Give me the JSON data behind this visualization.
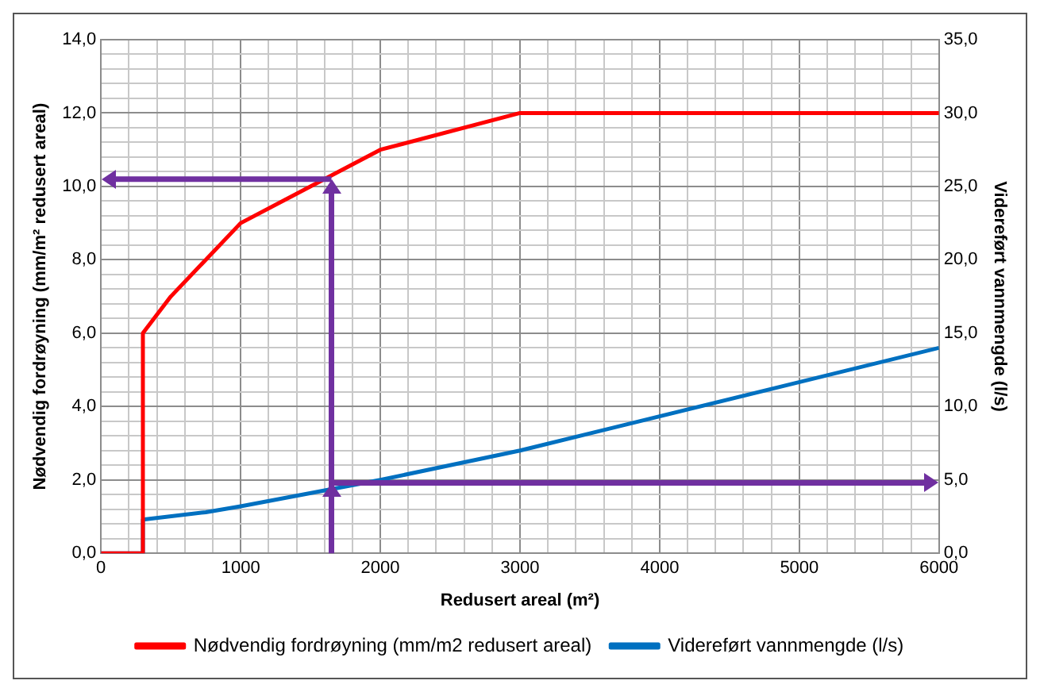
{
  "chart_data": {
    "type": "line",
    "xlabel": "Redusert areal (m²)",
    "ylabel": "Nødvendig fordrøyning (mm/m² redusert areal)",
    "y2label": "Videreført vannmengde (l/s)",
    "xlim": [
      0,
      6000
    ],
    "xticks": [
      0,
      {
        "value": 200,
        "label": null
      },
      {
        "value": 400,
        "label": null
      },
      {
        "value": 600,
        "label": null
      },
      {
        "value": 800,
        "label": null
      },
      1000,
      {
        "value": 1200,
        "label": null
      },
      {
        "value": 1400,
        "label": null
      },
      {
        "value": 1600,
        "label": null
      },
      {
        "value": 1800,
        "label": null
      },
      2000,
      {
        "value": 2200,
        "label": null
      },
      {
        "value": 2400,
        "label": null
      },
      {
        "value": 2600,
        "label": null
      },
      {
        "value": 2800,
        "label": null
      },
      3000,
      {
        "value": 3200,
        "label": null
      },
      {
        "value": 3400,
        "label": null
      },
      {
        "value": 3600,
        "label": null
      },
      {
        "value": 3800,
        "label": null
      },
      4000,
      {
        "value": 4200,
        "label": null
      },
      {
        "value": 4400,
        "label": null
      },
      {
        "value": 4600,
        "label": null
      },
      {
        "value": 4800,
        "label": null
      },
      5000,
      {
        "value": 5200,
        "label": null
      },
      {
        "value": 5400,
        "label": null
      },
      {
        "value": 5600,
        "label": null
      },
      {
        "value": 5800,
        "label": null
      },
      6000
    ],
    "ylim": [
      0,
      14
    ],
    "yticks": [
      {
        "value": 0,
        "label": "0,0"
      },
      {
        "value": 0.4,
        "label": null
      },
      {
        "value": 0.8,
        "label": null
      },
      {
        "value": 1.2,
        "label": null
      },
      {
        "value": 1.6,
        "label": null
      },
      {
        "value": 2,
        "label": "2,0"
      },
      {
        "value": 2.4,
        "label": null
      },
      {
        "value": 2.8,
        "label": null
      },
      {
        "value": 3.2,
        "label": null
      },
      {
        "value": 3.6,
        "label": null
      },
      {
        "value": 4,
        "label": "4,0"
      },
      {
        "value": 4.4,
        "label": null
      },
      {
        "value": 4.8,
        "label": null
      },
      {
        "value": 5.2,
        "label": null
      },
      {
        "value": 5.6,
        "label": null
      },
      {
        "value": 6,
        "label": "6,0"
      },
      {
        "value": 6.4,
        "label": null
      },
      {
        "value": 6.8,
        "label": null
      },
      {
        "value": 7.2,
        "label": null
      },
      {
        "value": 7.6,
        "label": null
      },
      {
        "value": 8,
        "label": "8,0"
      },
      {
        "value": 8.4,
        "label": null
      },
      {
        "value": 8.8,
        "label": null
      },
      {
        "value": 9.2,
        "label": null
      },
      {
        "value": 9.6,
        "label": null
      },
      {
        "value": 10,
        "label": "10,0"
      },
      {
        "value": 10.4,
        "label": null
      },
      {
        "value": 10.8,
        "label": null
      },
      {
        "value": 11.2,
        "label": null
      },
      {
        "value": 11.6,
        "label": null
      },
      {
        "value": 12,
        "label": "12,0"
      },
      {
        "value": 12.4,
        "label": null
      },
      {
        "value": 12.8,
        "label": null
      },
      {
        "value": 13.2,
        "label": null
      },
      {
        "value": 13.6,
        "label": null
      },
      {
        "value": 14,
        "label": "14,0"
      }
    ],
    "y2lim": [
      0,
      35
    ],
    "y2ticks": [
      {
        "value": 0,
        "label": "0,0"
      },
      {
        "value": 5,
        "label": "5,0"
      },
      {
        "value": 10,
        "label": "10,0"
      },
      {
        "value": 15,
        "label": "15,0"
      },
      {
        "value": 20,
        "label": "20,0"
      },
      {
        "value": 25,
        "label": "25,0"
      },
      {
        "value": 30,
        "label": "30,0"
      },
      {
        "value": 35,
        "label": "35,0"
      }
    ],
    "grid": true,
    "legend": "bottom",
    "marker": "none",
    "line_style": "solid",
    "series": [
      {
        "name": "Nødvendig fordrøyning (mm/m2 redusert areal)",
        "color": "#ff0000",
        "x": [
          0,
          300,
          300,
          500,
          1000,
          2000,
          3000,
          6000
        ],
        "values": [
          0,
          0,
          6.0,
          7.0,
          9.0,
          11.0,
          12.0,
          12.0
        ]
      },
      {
        "name": "Videreført vannmengde (l/s)",
        "color": "#0070c0",
        "axis": "y2",
        "x": [
          0,
          300,
          300,
          750,
          1000,
          2000,
          3000,
          6000
        ],
        "values": [
          0,
          0,
          2.3,
          2.8,
          3.2,
          5.0,
          7.0,
          14.0
        ]
      }
    ],
    "ref_lines": [
      {
        "axis": "x",
        "value": 1650,
        "color": "#7030a0"
      },
      {
        "axis": "y",
        "value": 10.2,
        "color": "#7030a0"
      },
      {
        "axis": "y2",
        "value": 4.8,
        "color": "#7030a0"
      }
    ]
  }
}
